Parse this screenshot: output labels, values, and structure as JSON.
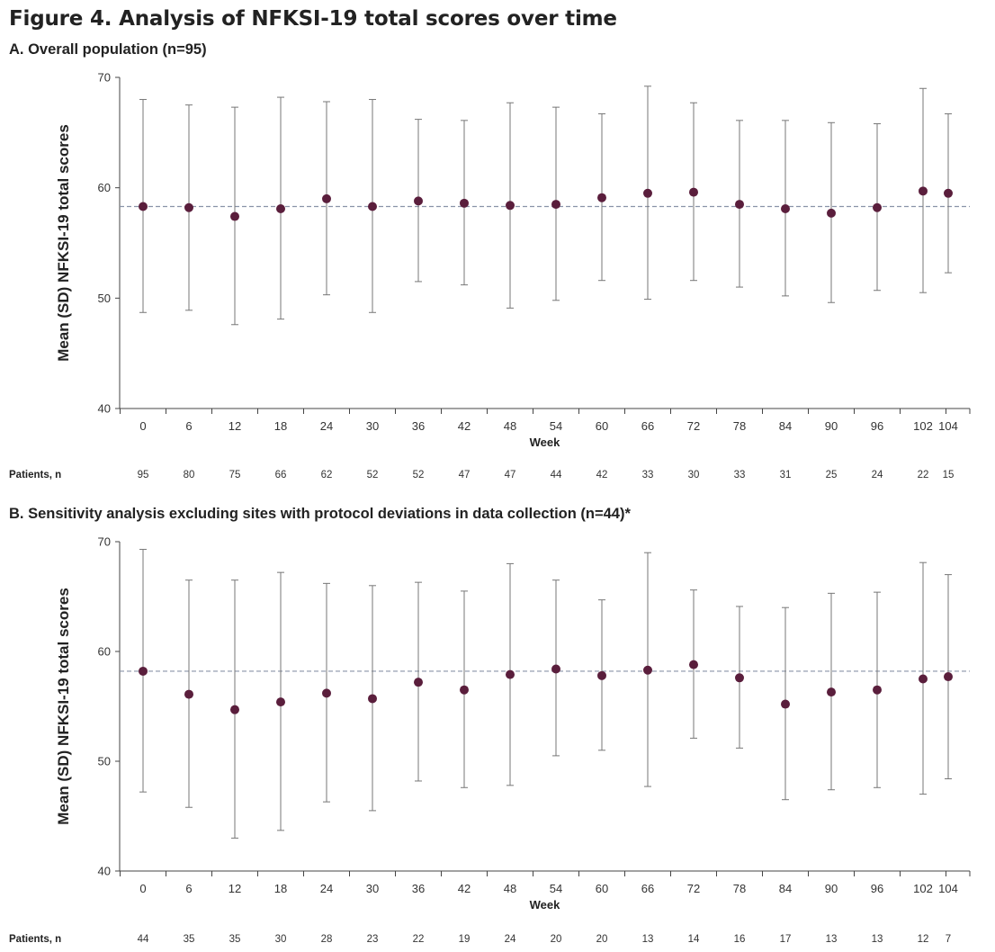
{
  "title": "Figure 4. Analysis of NFKSI-19 total scores over time",
  "chart_data": [
    {
      "type": "scatter",
      "subtitle": "A. Overall population (n=95)",
      "ylabel": "Mean (SD) NFKSI-19 total scores",
      "xlabel": "Week",
      "ylim": [
        40,
        70
      ],
      "yticks": [
        40,
        50,
        60,
        70
      ],
      "weeks": [
        "0",
        "6",
        "12",
        "18",
        "24",
        "30",
        "36",
        "42",
        "48",
        "54",
        "60",
        "66",
        "72",
        "78",
        "84",
        "90",
        "96",
        "102",
        "104"
      ],
      "mean": [
        58.3,
        58.2,
        57.4,
        58.1,
        59.0,
        58.3,
        58.8,
        58.6,
        58.4,
        58.5,
        59.1,
        59.5,
        59.6,
        58.5,
        58.1,
        57.7,
        58.2,
        59.7,
        59.5
      ],
      "upper": [
        68.0,
        67.5,
        67.3,
        68.2,
        67.8,
        68.0,
        66.2,
        66.1,
        67.7,
        67.3,
        66.7,
        69.2,
        67.7,
        66.1,
        66.1,
        65.9,
        65.8,
        69.0,
        66.7
      ],
      "lower": [
        48.7,
        48.9,
        47.6,
        48.1,
        50.3,
        48.7,
        51.5,
        51.2,
        49.1,
        49.8,
        51.6,
        49.9,
        51.6,
        51.0,
        50.2,
        49.6,
        50.7,
        50.5,
        52.3
      ],
      "reference_line": 58.3,
      "patients_label": "Patients, n",
      "patients": [
        "95",
        "80",
        "75",
        "66",
        "62",
        "52",
        "52",
        "47",
        "47",
        "44",
        "42",
        "33",
        "30",
        "33",
        "31",
        "25",
        "24",
        "22",
        "15"
      ],
      "marker_color": "#5a1e3c",
      "errorbar_color": "#777777",
      "reference_color": "#8a93a8"
    },
    {
      "type": "scatter",
      "subtitle": "B. Sensitivity analysis excluding sites with protocol deviations in data collection (n=44)*",
      "ylabel": "Mean (SD) NFKSI-19 total scores",
      "xlabel": "Week",
      "ylim": [
        40,
        70
      ],
      "yticks": [
        40,
        50,
        60,
        70
      ],
      "weeks": [
        "0",
        "6",
        "12",
        "18",
        "24",
        "30",
        "36",
        "42",
        "48",
        "54",
        "60",
        "66",
        "72",
        "78",
        "84",
        "90",
        "96",
        "102",
        "104"
      ],
      "mean": [
        58.2,
        56.1,
        54.7,
        55.4,
        56.2,
        55.7,
        57.2,
        56.5,
        57.9,
        58.4,
        57.8,
        58.3,
        58.8,
        57.6,
        55.2,
        56.3,
        56.5,
        57.5,
        57.7
      ],
      "upper": [
        69.3,
        66.5,
        66.5,
        67.2,
        66.2,
        66.0,
        66.3,
        65.5,
        68.0,
        66.5,
        64.7,
        69.0,
        65.6,
        64.1,
        64.0,
        65.3,
        65.4,
        68.1,
        67.0
      ],
      "lower": [
        47.2,
        45.8,
        43.0,
        43.7,
        46.3,
        45.5,
        48.2,
        47.6,
        47.8,
        50.5,
        51.0,
        47.7,
        52.1,
        51.2,
        46.5,
        47.4,
        47.6,
        47.0,
        48.4
      ],
      "reference_line": 58.2,
      "patients_label": "Patients, n",
      "patients": [
        "44",
        "35",
        "35",
        "30",
        "28",
        "23",
        "22",
        "19",
        "24",
        "20",
        "20",
        "13",
        "14",
        "16",
        "17",
        "13",
        "13",
        "12",
        "7"
      ],
      "marker_color": "#5a1e3c",
      "errorbar_color": "#777777",
      "reference_color": "#8a93a8"
    }
  ]
}
